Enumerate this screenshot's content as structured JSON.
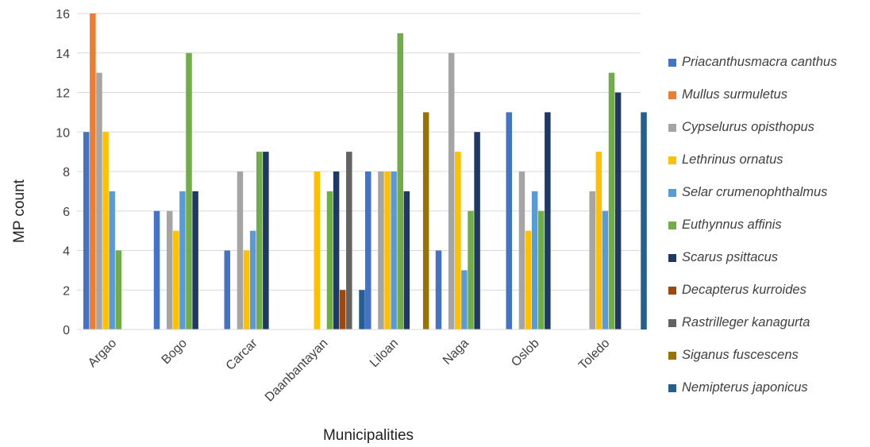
{
  "chart_data": {
    "type": "bar",
    "title": "",
    "xlabel": "Municipalities",
    "ylabel": "MP count",
    "ylim": [
      0,
      16
    ],
    "yticks": [
      0,
      2,
      4,
      6,
      8,
      10,
      12,
      14,
      16
    ],
    "grid": true,
    "legend_position": "right",
    "categories": [
      "Argao",
      "Bogo",
      "Carcar",
      "Daanbantayan",
      "Liloan",
      "Naga",
      "Oslob",
      "Toledo"
    ],
    "series": [
      {
        "name": "Priacanthusmacra canthus",
        "color": "#4472C4",
        "values": [
          10,
          6,
          4,
          0,
          8,
          4,
          11,
          0
        ]
      },
      {
        "name": "Mullus surmuletus",
        "color": "#ED7D31",
        "values": [
          16,
          0,
          0,
          0,
          0,
          0,
          0,
          0
        ]
      },
      {
        "name": "Cypselurus opisthopus",
        "color": "#A5A5A5",
        "values": [
          13,
          6,
          8,
          0,
          8,
          14,
          8,
          7
        ]
      },
      {
        "name": "Lethrinus ornatus",
        "color": "#FFC000",
        "values": [
          10,
          5,
          4,
          8,
          8,
          9,
          5,
          9
        ]
      },
      {
        "name": "Selar crumenophthalmus",
        "color": "#5B9BD5",
        "values": [
          7,
          7,
          5,
          0,
          8,
          3,
          7,
          6
        ]
      },
      {
        "name": "Euthynnus affinis",
        "color": "#70AD47",
        "values": [
          4,
          14,
          9,
          7,
          15,
          6,
          6,
          13
        ]
      },
      {
        "name": "Scarus psittacus",
        "color": "#203864",
        "values": [
          0,
          7,
          9,
          8,
          7,
          10,
          11,
          12
        ]
      },
      {
        "name": "Decapterus kurroides",
        "color": "#9E480E",
        "values": [
          0,
          0,
          0,
          2,
          0,
          0,
          0,
          0
        ]
      },
      {
        "name": "Rastrilleger kanagurta",
        "color": "#636363",
        "values": [
          0,
          0,
          0,
          9,
          0,
          0,
          0,
          0
        ]
      },
      {
        "name": "Siganus fuscescens",
        "color": "#997300",
        "values": [
          0,
          0,
          0,
          0,
          11,
          0,
          0,
          0
        ]
      },
      {
        "name": "Nemipterus japonicus",
        "color": "#255E91",
        "values": [
          0,
          0,
          0,
          2,
          0,
          0,
          0,
          11
        ]
      }
    ]
  }
}
